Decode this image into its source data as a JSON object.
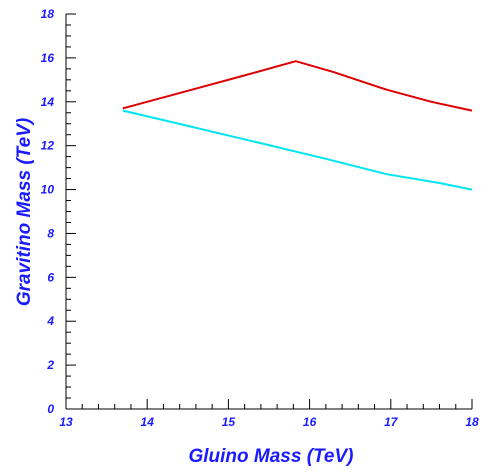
{
  "chart_data": {
    "type": "line",
    "title": "",
    "xlabel": "Gluino Mass (TeV)",
    "ylabel": "Gravitino Mass (TeV)",
    "xlim": [
      13,
      18
    ],
    "ylim": [
      0,
      18
    ],
    "x_ticks": [
      13,
      14,
      15,
      16,
      17,
      18
    ],
    "y_ticks": [
      0,
      2,
      4,
      6,
      8,
      10,
      12,
      14,
      16,
      18
    ],
    "grid": false,
    "series": [
      {
        "color": "#dd0000",
        "x": [
          13.7,
          14.5,
          15.2,
          15.83,
          16.3,
          16.95,
          17.5,
          18.0
        ],
        "y": [
          13.7,
          14.5,
          15.2,
          15.85,
          15.35,
          14.55,
          14.0,
          13.6
        ]
      },
      {
        "color": "#00e5ee",
        "x": [
          13.7,
          14.5,
          15.3,
          16.2,
          16.95,
          17.6,
          18.0
        ],
        "y": [
          13.6,
          12.9,
          12.2,
          11.4,
          10.7,
          10.3,
          10.0
        ]
      }
    ]
  }
}
